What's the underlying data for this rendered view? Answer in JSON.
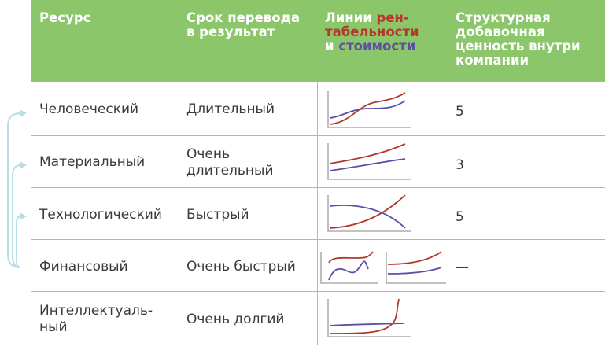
{
  "headers": {
    "resource": "Ресурс",
    "term_line1": "Срок перевода",
    "term_line2": "в результат",
    "lines_line1_a": "Линии ",
    "lines_line1_b": "рен-",
    "lines_line2": "табельности",
    "lines_line3_a": "и ",
    "lines_line3_b": "стоимости",
    "value_line1": "Структурная",
    "value_line2": "добавочная",
    "value_line3": "ценность внутри",
    "value_line4": "компании"
  },
  "rows": [
    {
      "resource": "Человеческий",
      "resource2": "",
      "term": "Длительный",
      "term2": "",
      "value": "5"
    },
    {
      "resource": "Материальный",
      "resource2": "",
      "term": "Очень",
      "term2": "длительный",
      "value": "3"
    },
    {
      "resource": "Технологический",
      "resource2": "",
      "term": "Быстрый",
      "term2": "",
      "value": "5"
    },
    {
      "resource": "Финансовый",
      "resource2": "",
      "term": "Очень быстрый",
      "term2": "",
      "value": "—"
    },
    {
      "resource": "Интеллектуаль-",
      "resource2": "ный",
      "term": "Очень долгий",
      "term2": "",
      "value": ""
    }
  ],
  "colors": {
    "header_bg": "#8cc66a",
    "profitability_line": "#b5372c",
    "value_line": "#5d4fa6",
    "arrow": "#b8dde4"
  }
}
